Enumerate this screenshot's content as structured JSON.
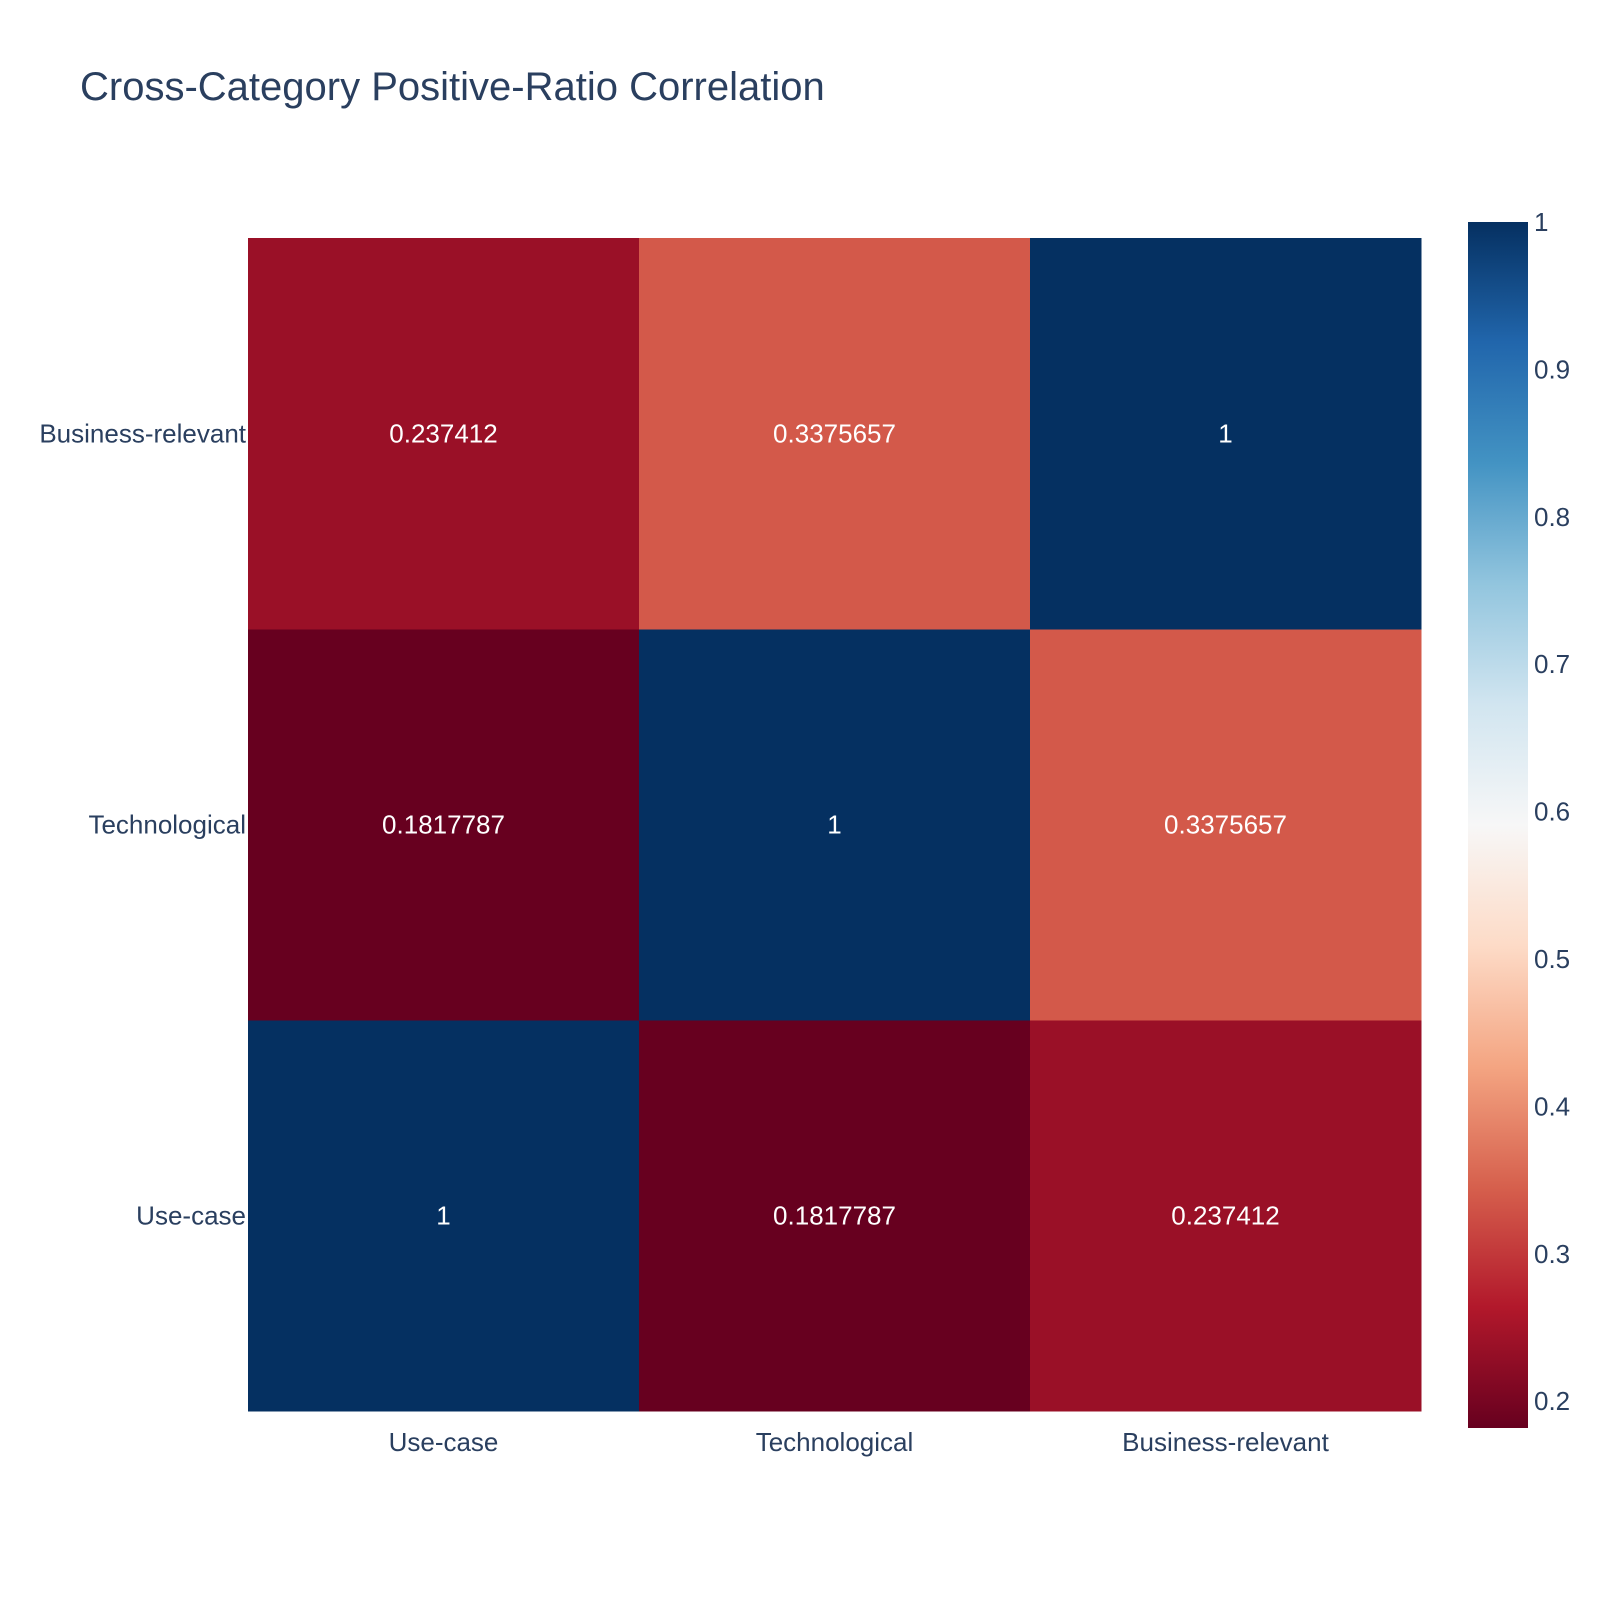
{
  "chart_data": {
    "type": "heatmap",
    "title": "Cross-Category Positive-Ratio Correlation",
    "x_categories": [
      "Use-case",
      "Technological",
      "Business-relevant"
    ],
    "y_categories": [
      "Use-case",
      "Technological",
      "Business-relevant"
    ],
    "z": [
      [
        1,
        0.1817787,
        0.237412
      ],
      [
        0.1817787,
        1,
        0.3375657
      ],
      [
        0.237412,
        0.3375657,
        1
      ]
    ],
    "cell_labels": [
      [
        "1",
        "0.1817787",
        "0.237412"
      ],
      [
        "0.1817787",
        "1",
        "0.3375657"
      ],
      [
        "0.237412",
        "0.3375657",
        "1"
      ]
    ],
    "colorscale": [
      [
        0.0,
        "#67001f"
      ],
      [
        0.1,
        "#b2182b"
      ],
      [
        0.2,
        "#d6604d"
      ],
      [
        0.3,
        "#f4a582"
      ],
      [
        0.4,
        "#fddbc7"
      ],
      [
        0.5,
        "#f7f7f7"
      ],
      [
        0.6,
        "#d1e5f0"
      ],
      [
        0.7,
        "#92c5de"
      ],
      [
        0.8,
        "#4393c3"
      ],
      [
        0.9,
        "#2166ac"
      ],
      [
        1.0,
        "#053061"
      ]
    ],
    "zmin": 0.1817787,
    "zmax": 1,
    "colorbar_ticks": [
      "0.2",
      "0.3",
      "0.4",
      "0.5",
      "0.6",
      "0.7",
      "0.8",
      "0.9",
      "1"
    ],
    "colorbar_tick_values": [
      0.2,
      0.3,
      0.4,
      0.5,
      0.6,
      0.7,
      0.8,
      0.9,
      1
    ],
    "xlabel": "",
    "ylabel": "",
    "grid": false,
    "legend": "colorbar-right"
  }
}
